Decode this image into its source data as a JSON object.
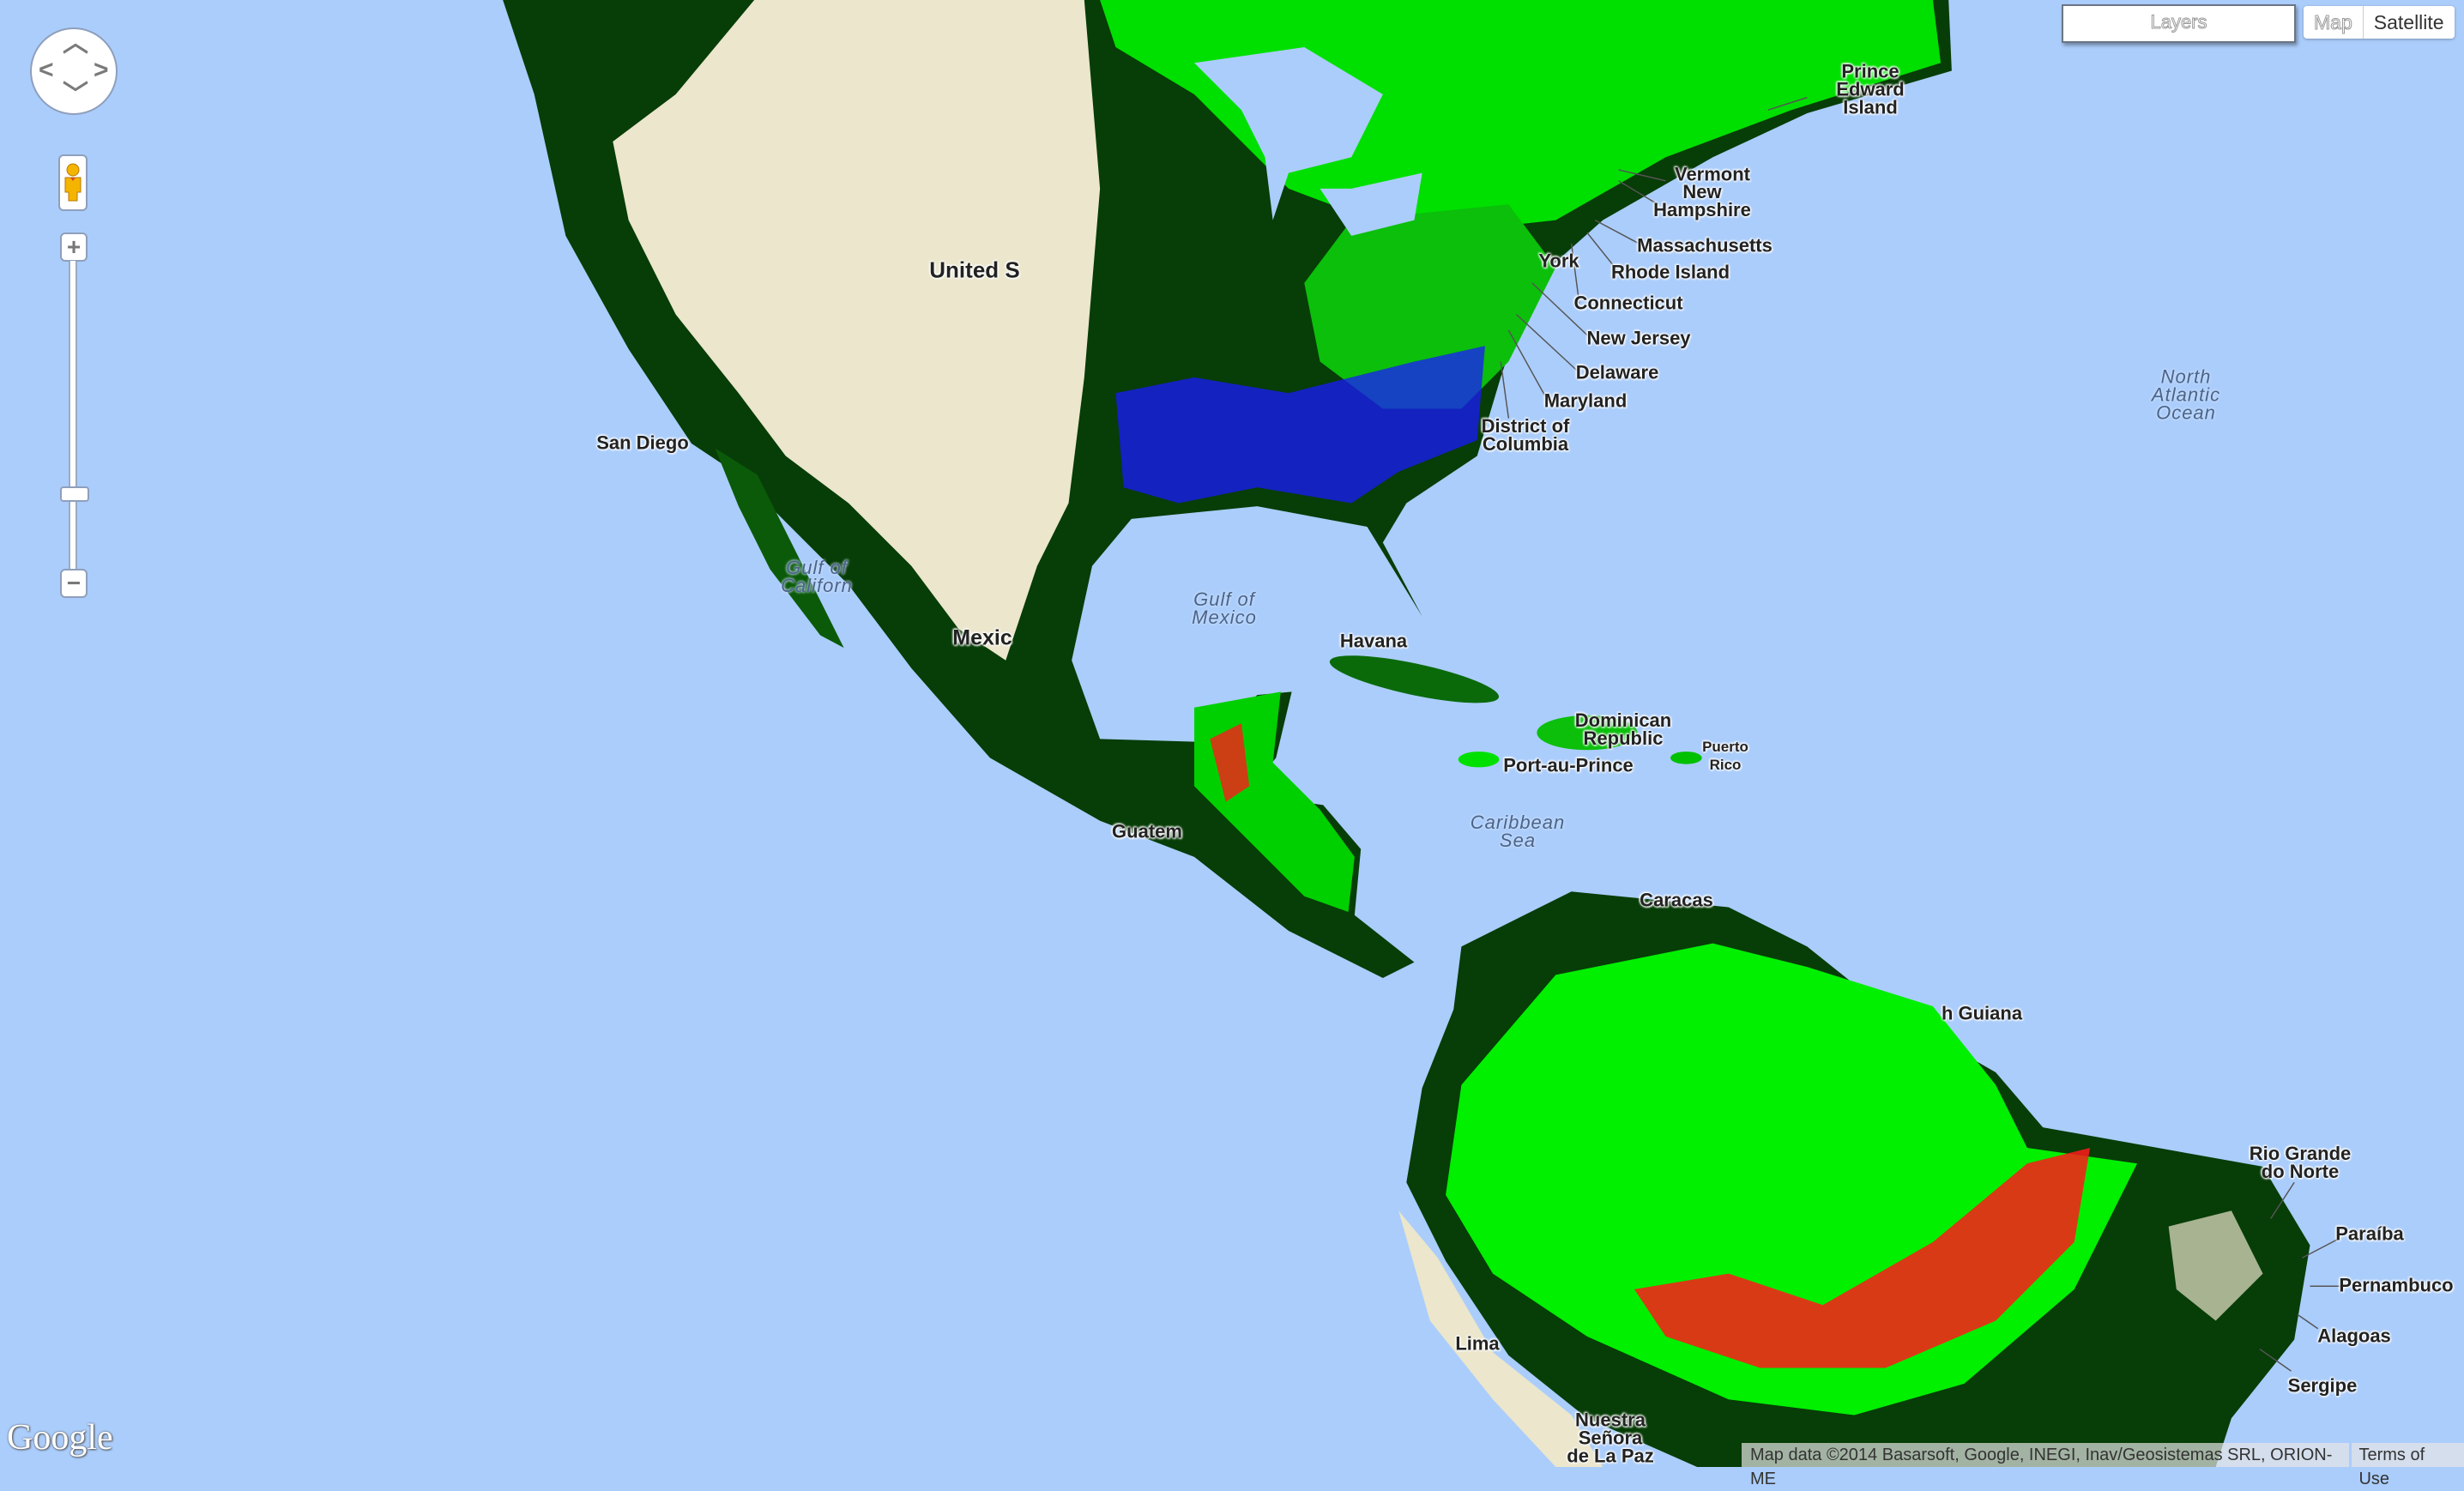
{
  "map": {
    "map_type_selected": "Map",
    "colors": {
      "water": "#abcdfb",
      "desert": "#ebe6cc",
      "dark_forest": "#073d07",
      "green": "#00e600",
      "red": "#ff1a1a",
      "blue": "#1a1aff"
    },
    "labels": {
      "pei": "Prince\nEdward\nIsland",
      "vermont": "Vermont",
      "new_hampshire": "New\nHampshire",
      "massachusetts": "Massachusetts",
      "rhode_island": "Rhode Island",
      "connecticut": "Connecticut",
      "new_jersey": "New Jersey",
      "delaware": "Delaware",
      "maryland": "Maryland",
      "dc": "District of\nColumbia",
      "york": "York",
      "north_atlantic": "North\nAtlantic\nOcean",
      "san_diego": "San Diego",
      "united_states": "United S",
      "gulf_of_mexico": "Gulf of\nMexico",
      "gulf_of_california": "Gulf of\nCaliforn",
      "mexico": "Mexic",
      "havana": "Havana",
      "dominican_republic": "Dominican\nRepublic",
      "puerto_rico": "Puerto\nRico",
      "port_au_prince": "Port-au-Prince",
      "caribbean_sea": "Caribbean\nSea",
      "caracas": "Caracas",
      "guatemala": "Guatem",
      "guiana": "h Guiana",
      "rio_grande_do_norte": "Rio Grande\ndo Norte",
      "paraiba": "Paraíba",
      "pernambuco": "Pernambuco",
      "alagoas": "Alagoas",
      "sergipe": "Sergipe",
      "lima": "Lima",
      "la_paz": "Nuestra\nSeñora\nde La Paz"
    }
  },
  "controls": {
    "layers_label": "Layers",
    "map_button": "Map",
    "satellite_button": "Satellite",
    "zoom_in": "+",
    "zoom_out": "−",
    "zoom_level_fraction": 0.23
  },
  "footer": {
    "attribution": "Map data ©2014 Basarsoft, Google, INEGI, Inav/Geosistemas SRL, ORION-ME",
    "terms": "Terms of Use",
    "logo": "Google"
  }
}
